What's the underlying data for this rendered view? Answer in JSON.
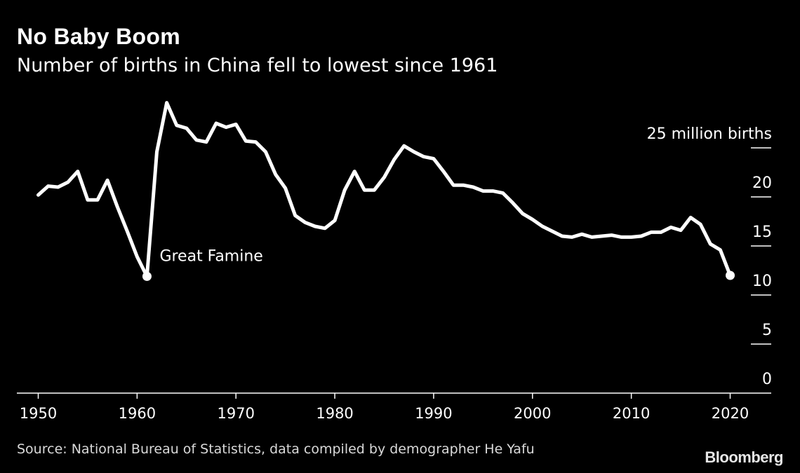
{
  "title": "No Baby Boom",
  "subtitle": "Number of births in China fell to lowest since 1961",
  "source": "Source: National Bureau of Statistics, data compiled by demographer He Yafu",
  "logo": "Bloomberg",
  "colors": {
    "background": "#000000",
    "line": "#ffffff",
    "text": "#ffffff",
    "muted": "#d9d9d9"
  },
  "chart_data": {
    "type": "line",
    "title": "No Baby Boom",
    "subtitle": "Number of births in China fell to lowest since 1961",
    "ylabel": "25 million births",
    "ylim": [
      0,
      25
    ],
    "xlim": [
      1949,
      2024
    ],
    "x_ticks": [
      1950,
      1960,
      1970,
      1980,
      1990,
      2000,
      2010,
      2020
    ],
    "y_ticks": [
      0,
      5,
      10,
      15,
      20,
      25
    ],
    "y_tick_labels": [
      "0",
      "5",
      "10",
      "15",
      "20",
      "25 million births"
    ],
    "x": [
      1950,
      1951,
      1952,
      1953,
      1954,
      1955,
      1956,
      1957,
      1958,
      1959,
      1960,
      1961,
      1962,
      1963,
      1964,
      1965,
      1966,
      1967,
      1968,
      1969,
      1970,
      1971,
      1972,
      1973,
      1974,
      1975,
      1976,
      1977,
      1978,
      1979,
      1980,
      1981,
      1982,
      1983,
      1984,
      1985,
      1986,
      1987,
      1988,
      1989,
      1990,
      1991,
      1992,
      1993,
      1994,
      1995,
      1996,
      1997,
      1998,
      1999,
      2000,
      2001,
      2002,
      2003,
      2004,
      2005,
      2006,
      2007,
      2008,
      2009,
      2010,
      2011,
      2012,
      2013,
      2014,
      2015,
      2016,
      2017,
      2018,
      2019,
      2020
    ],
    "y": [
      20.2,
      21.1,
      21.0,
      21.5,
      22.6,
      19.7,
      19.7,
      21.7,
      19.0,
      16.5,
      13.9,
      11.9,
      24.6,
      29.6,
      27.3,
      27.0,
      25.8,
      25.6,
      27.5,
      27.1,
      27.4,
      25.7,
      25.6,
      24.6,
      22.3,
      20.9,
      18.1,
      17.4,
      17.0,
      16.8,
      17.6,
      20.7,
      22.6,
      20.7,
      20.7,
      22.0,
      23.8,
      25.2,
      24.6,
      24.1,
      23.9,
      22.6,
      21.2,
      21.2,
      21.0,
      20.6,
      20.6,
      20.4,
      19.4,
      18.3,
      17.7,
      17.0,
      16.5,
      16.0,
      15.9,
      16.2,
      15.9,
      16.0,
      16.1,
      15.9,
      15.9,
      16.0,
      16.4,
      16.4,
      16.9,
      16.6,
      17.9,
      17.2,
      15.2,
      14.6,
      12.0
    ],
    "series": [
      {
        "values_key": "y"
      }
    ],
    "annotations": [
      {
        "text": "Great Famine",
        "x": 1961,
        "y": 11.9
      }
    ],
    "highlight_points": [
      {
        "x": 1961,
        "y": 11.9
      },
      {
        "x": 2020,
        "y": 12.0
      }
    ],
    "grid": false,
    "legend": "none"
  }
}
